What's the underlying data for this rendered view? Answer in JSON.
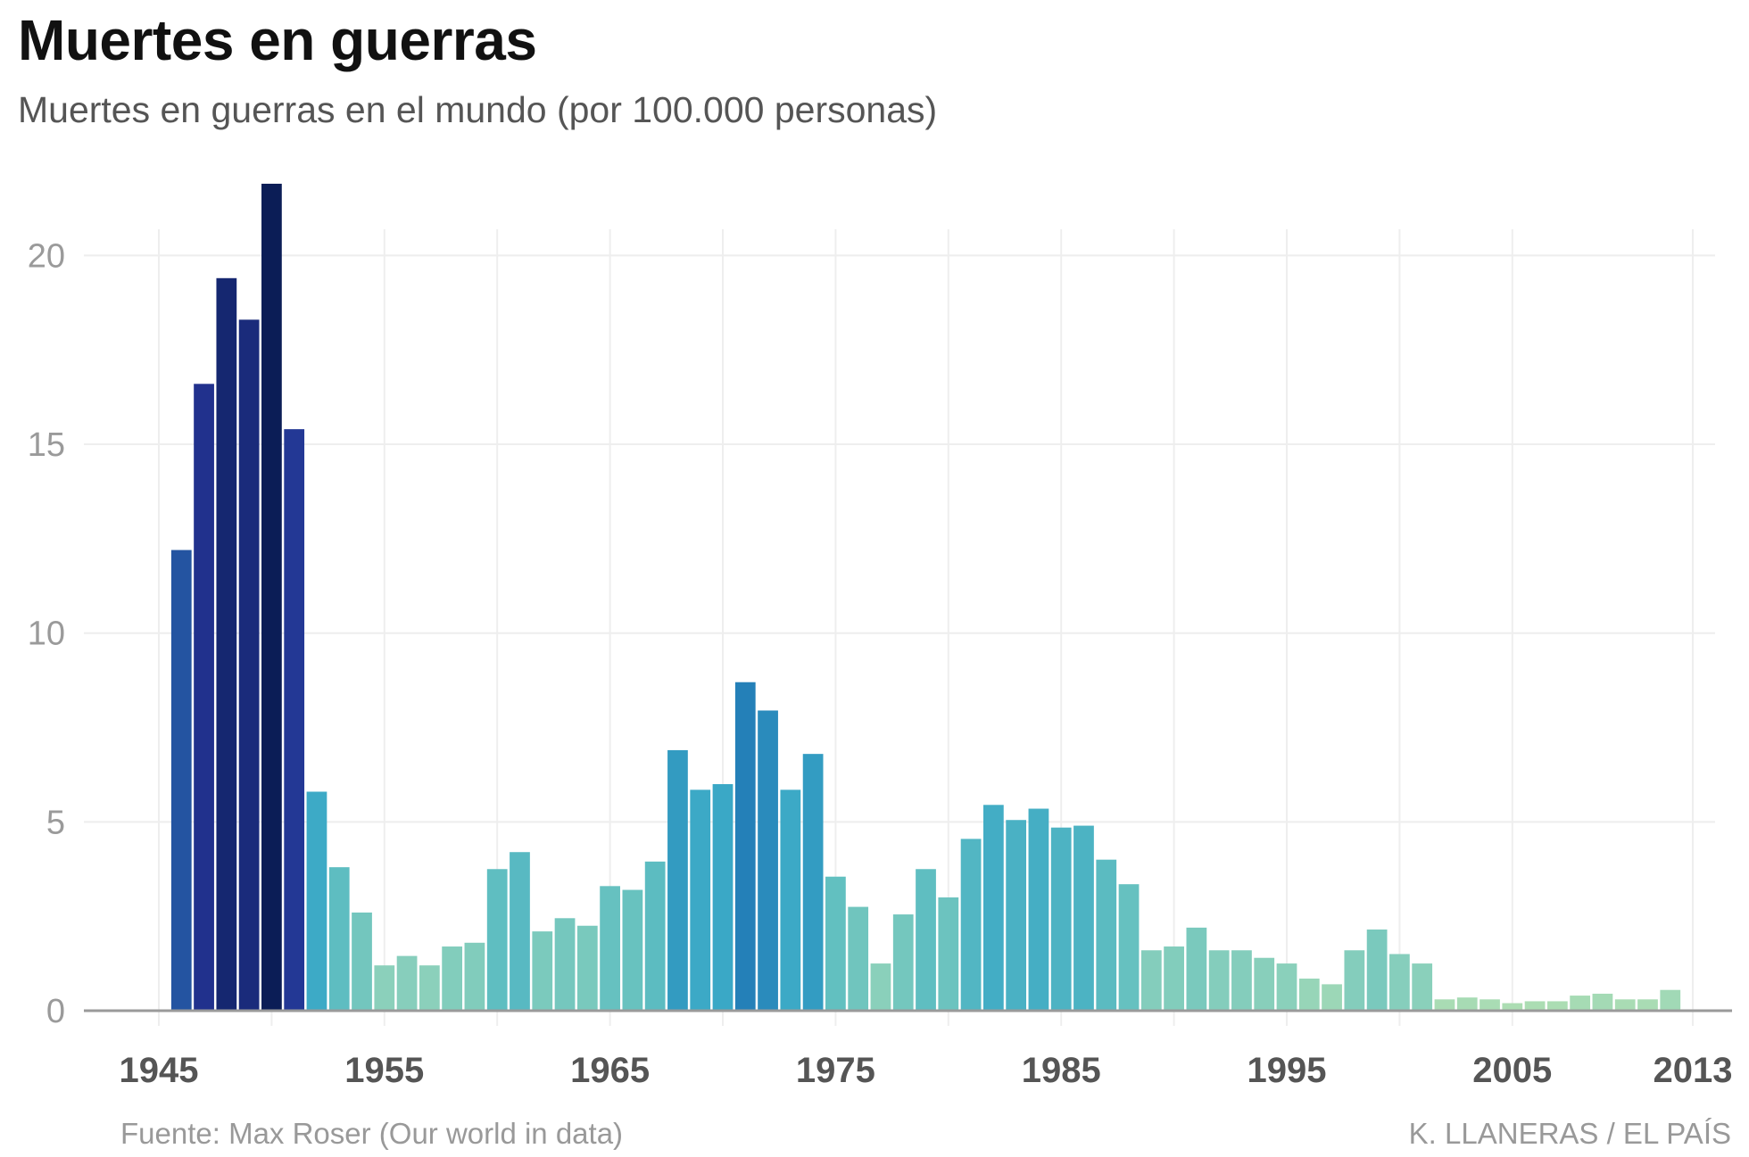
{
  "header": {
    "title": "Muertes en guerras",
    "subtitle": "Muertes en guerras en el mundo  (por 100.000 personas)"
  },
  "footer": {
    "source": "Fuente: Max Roser (Our world in data)",
    "credit": "K. LLANERAS  /  EL PAÍS"
  },
  "chart_data": {
    "type": "bar",
    "title": "Muertes en guerras",
    "subtitle": "Muertes en guerras en el mundo  (por 100.000 personas)",
    "xlabel": "",
    "ylabel": "",
    "ylim": [
      0,
      22
    ],
    "grid": true,
    "y_ticks": [
      "0",
      "5",
      "10",
      "15",
      "20"
    ],
    "x_ticks": [
      "1945",
      "1955",
      "1965",
      "1975",
      "1985",
      "1995",
      "2005",
      "2013"
    ],
    "color_scale": [
      "#b3e0b1",
      "#8bd0bb",
      "#63c0c0",
      "#3aa8c6",
      "#2480b8",
      "#24509f",
      "#233393",
      "#0b1d55"
    ],
    "x": [
      1946,
      1947,
      1948,
      1949,
      1950,
      1951,
      1952,
      1953,
      1954,
      1955,
      1956,
      1957,
      1958,
      1959,
      1960,
      1961,
      1962,
      1963,
      1964,
      1965,
      1966,
      1967,
      1968,
      1969,
      1970,
      1971,
      1972,
      1973,
      1974,
      1975,
      1976,
      1977,
      1978,
      1979,
      1980,
      1981,
      1982,
      1983,
      1984,
      1985,
      1986,
      1987,
      1988,
      1989,
      1990,
      1991,
      1992,
      1993,
      1994,
      1995,
      1996,
      1997,
      1998,
      1999,
      2000,
      2001,
      2002,
      2003,
      2004,
      2005,
      2006,
      2007,
      2008,
      2009,
      2010,
      2011,
      2012
    ],
    "values": [
      12.2,
      16.6,
      19.4,
      18.3,
      21.9,
      15.4,
      5.8,
      3.8,
      2.6,
      1.2,
      1.45,
      1.2,
      1.7,
      1.8,
      3.75,
      4.2,
      2.1,
      2.45,
      2.25,
      3.3,
      3.2,
      3.95,
      6.9,
      5.85,
      6.0,
      8.7,
      7.95,
      5.85,
      6.8,
      3.55,
      2.75,
      1.25,
      2.55,
      3.75,
      3.0,
      4.55,
      5.45,
      5.05,
      5.35,
      4.85,
      4.9,
      4.0,
      3.35,
      1.6,
      1.7,
      2.2,
      1.6,
      1.6,
      1.4,
      1.25,
      0.85,
      0.7,
      1.6,
      2.15,
      1.5,
      1.25,
      0.3,
      0.35,
      0.3,
      0.2,
      0.25,
      0.25,
      0.4,
      0.45,
      0.3,
      0.3,
      0.55
    ]
  }
}
